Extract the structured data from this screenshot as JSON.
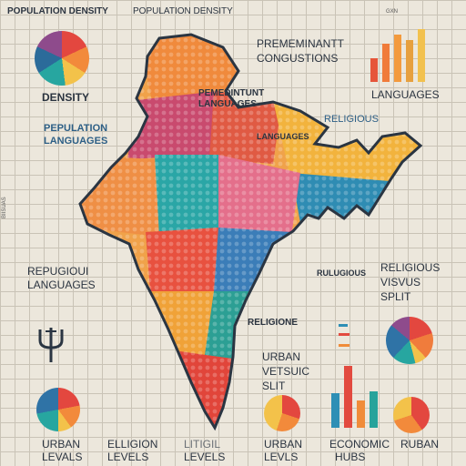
{
  "header": {
    "title_left": "POPULATION DENSITY",
    "title_right": "POPULATION DENSITY",
    "tiny_tag": "GXN"
  },
  "labels": {
    "density": "DENSITY",
    "predominant": "PREMEMINANTT",
    "congestions": "CONGUSTIONS",
    "languages_top_right": "LANGUAGES",
    "map_prominent": "PEMEDINTUNT",
    "map_languages": "LANGUAGES",
    "religious_right": "RELIGIOUS",
    "pop_languages_1": "PEPULATION",
    "pop_languages_2": "LANGUAGES",
    "map_languages_2": "LANGUAGES",
    "side_tag": "BIISUAS",
    "repugious": "REPUGIOUI",
    "languages_left": "LANGUAGES",
    "map_rulugious": "RULUGIOUS",
    "religious_split_1": "RELIGIOUS",
    "religious_split_2": "VISVUS",
    "religious_split_3": "SPLIT",
    "religions": "RELIGIONE",
    "map_languages_3": "LANGUAGES",
    "urban_1": "URBAN",
    "urban_2": "VETSUIC",
    "urban_3": "SLIT",
    "bottom_urban_1": "URBAN",
    "bottom_urban_2": "LEVALS",
    "bottom_religion_1": "ELLIGION",
    "bottom_religion_2": "LEVELS",
    "bottom_levels_1": "LITIGIL",
    "bottom_levels_2": "LEVELS",
    "bottom_urban_b1": "URBAN",
    "bottom_urban_b2": "LEVLS",
    "bottom_economic_1": "ECONOMIC",
    "bottom_economic_2": "HUBS",
    "bottom_right": "RUBAN"
  },
  "colors": {
    "pie_a": [
      "#e3473f",
      "#f28a3b",
      "#f3c24a",
      "#27a6a0",
      "#2b6b9a",
      "#8e4b8c"
    ],
    "bars": [
      "#e6553a",
      "#f07b3a",
      "#f39a3d",
      "#e7a03e",
      "#f2c14e"
    ],
    "bars_mid": [
      "#2e8fb5",
      "#e24a3f",
      "#f08c3a",
      "#27a39b"
    ]
  },
  "icons": {
    "religion_symbol": "trident-icon"
  }
}
